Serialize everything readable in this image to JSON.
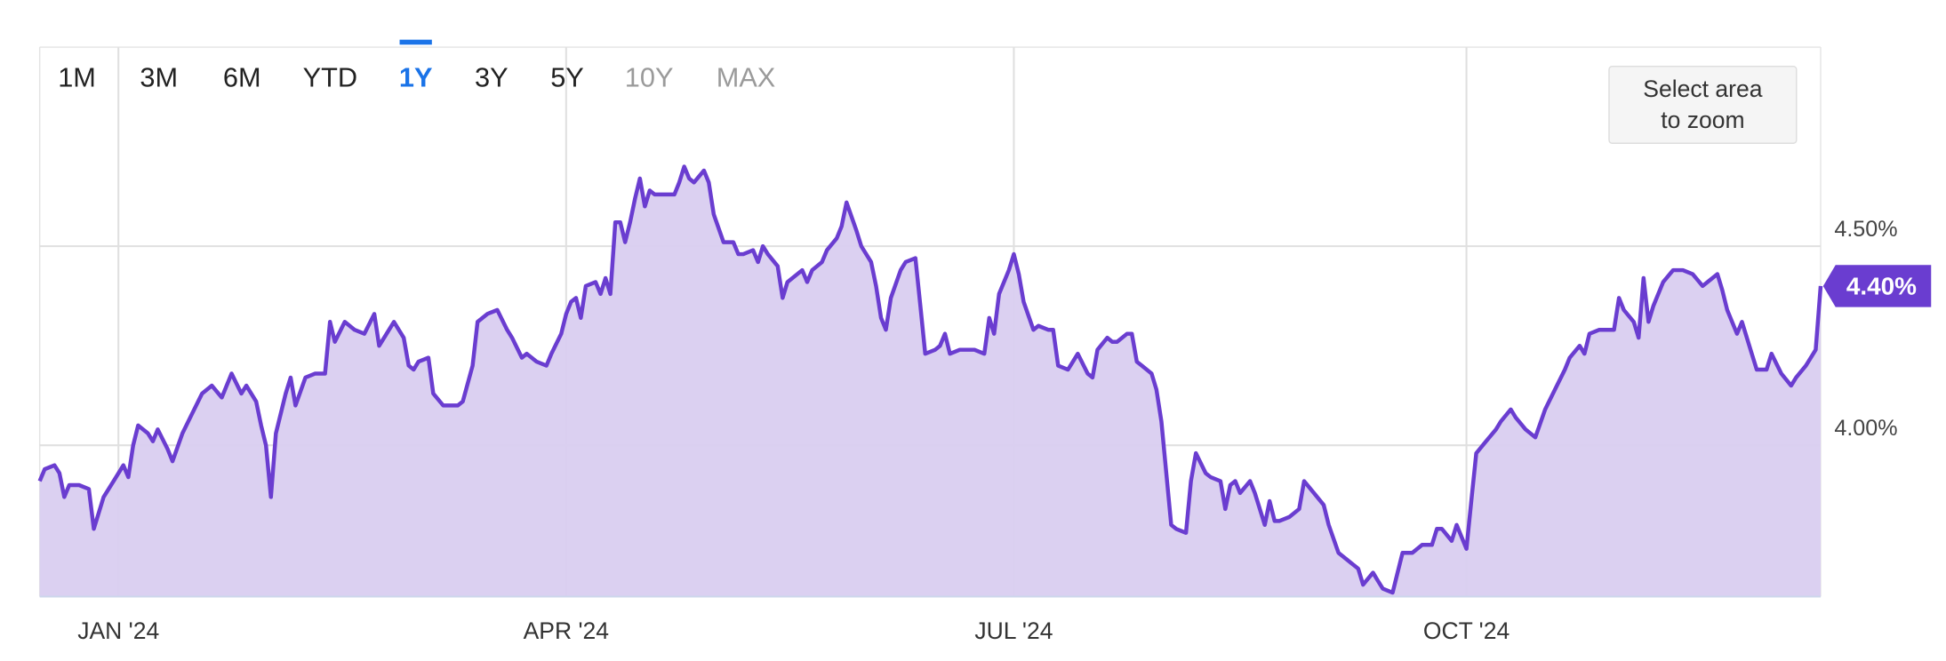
{
  "chart_data": {
    "type": "area",
    "range_buttons": [
      {
        "label": "1M",
        "state": "enabled"
      },
      {
        "label": "3M",
        "state": "enabled"
      },
      {
        "label": "6M",
        "state": "enabled"
      },
      {
        "label": "YTD",
        "state": "enabled"
      },
      {
        "label": "1Y",
        "state": "active"
      },
      {
        "label": "3Y",
        "state": "enabled"
      },
      {
        "label": "5Y",
        "state": "enabled"
      },
      {
        "label": "10Y",
        "state": "disabled"
      },
      {
        "label": "MAX",
        "state": "disabled"
      }
    ],
    "zoom_button": "Select area to zoom",
    "color": "#6a3dd0",
    "fill_color": "#d9cdf0",
    "x": [
      -16,
      -15,
      -13,
      -12,
      -11,
      -10,
      -8,
      -6,
      -5,
      -3,
      -1,
      1,
      2,
      3,
      4,
      6,
      7,
      8,
      10,
      11,
      13,
      15,
      17,
      19,
      21,
      23,
      25,
      26,
      28,
      29,
      30,
      31,
      32,
      34,
      35,
      36,
      38,
      40,
      42,
      43,
      44,
      46,
      48,
      50,
      52,
      53,
      54,
      56,
      58,
      59,
      60,
      61,
      63,
      64,
      66,
      69,
      70,
      72,
      73,
      75,
      77,
      79,
      80,
      82,
      83,
      85,
      87,
      88,
      90,
      91,
      92,
      93,
      94,
      95,
      97,
      98,
      99,
      100,
      101,
      102,
      103,
      104,
      105,
      106,
      107,
      108,
      109,
      111,
      113,
      114,
      115,
      116,
      117,
      119,
      120,
      121,
      123,
      125,
      126,
      127,
      129,
      130,
      131,
      132,
      134,
      135,
      136,
      137,
      139,
      140,
      141,
      143,
      144,
      146,
      147,
      148,
      150,
      151,
      153,
      154,
      155,
      156,
      157,
      159,
      160,
      162,
      163,
      164,
      166,
      167,
      168,
      169,
      171,
      172,
      174,
      176,
      177,
      178,
      179,
      181,
      182,
      183,
      184,
      186,
      187,
      189,
      190,
      191,
      193,
      194,
      195,
      197,
      198,
      199,
      201,
      202,
      203,
      205,
      206,
      207,
      208,
      210,
      211,
      212,
      214,
      215,
      217,
      218,
      219,
      221,
      222,
      224,
      225,
      226,
      227,
      228,
      230,
      231,
      233,
      234,
      235,
      236,
      238,
      240,
      241,
      243,
      245,
      246,
      248,
      250,
      252,
      253,
      255,
      256,
      257,
      259,
      260,
      261,
      263,
      265,
      267,
      268,
      269,
      271,
      272,
      274,
      275,
      276,
      278,
      280,
      281,
      283,
      284,
      286,
      288,
      290,
      292,
      294,
      295,
      297,
      298,
      299,
      301,
      302,
      304,
      305,
      306,
      308,
      309,
      310,
      311,
      312,
      314,
      316,
      318,
      320,
      322,
      323,
      325,
      326,
      327,
      329,
      330,
      332,
      333,
      335,
      336,
      338,
      340,
      341,
      343,
      345,
      346
    ],
    "values": [
      3.91,
      3.94,
      3.95,
      3.93,
      3.87,
      3.9,
      3.9,
      3.89,
      3.79,
      3.87,
      3.91,
      3.95,
      3.92,
      4.0,
      4.05,
      4.03,
      4.01,
      4.04,
      3.99,
      3.96,
      4.03,
      4.08,
      4.13,
      4.15,
      4.12,
      4.18,
      4.13,
      4.15,
      4.11,
      4.05,
      4.0,
      3.87,
      4.03,
      4.13,
      4.17,
      4.1,
      4.17,
      4.18,
      4.18,
      4.31,
      4.26,
      4.31,
      4.29,
      4.28,
      4.33,
      4.25,
      4.27,
      4.31,
      4.27,
      4.2,
      4.19,
      4.21,
      4.22,
      4.13,
      4.1,
      4.1,
      4.11,
      4.2,
      4.31,
      4.33,
      4.34,
      4.29,
      4.27,
      4.22,
      4.23,
      4.21,
      4.2,
      4.23,
      4.28,
      4.33,
      4.36,
      4.37,
      4.32,
      4.4,
      4.41,
      4.38,
      4.42,
      4.38,
      4.56,
      4.56,
      4.51,
      4.56,
      4.62,
      4.67,
      4.6,
      4.64,
      4.63,
      4.63,
      4.63,
      4.66,
      4.7,
      4.67,
      4.66,
      4.69,
      4.66,
      4.58,
      4.51,
      4.51,
      4.48,
      4.48,
      4.49,
      4.46,
      4.5,
      4.48,
      4.45,
      4.37,
      4.41,
      4.42,
      4.44,
      4.41,
      4.44,
      4.46,
      4.49,
      4.52,
      4.55,
      4.61,
      4.54,
      4.5,
      4.46,
      4.4,
      4.32,
      4.29,
      4.37,
      4.44,
      4.46,
      4.47,
      4.35,
      4.23,
      4.24,
      4.25,
      4.28,
      4.23,
      4.24,
      4.24,
      4.24,
      4.23,
      4.32,
      4.28,
      4.38,
      4.44,
      4.48,
      4.43,
      4.36,
      4.29,
      4.3,
      4.29,
      4.29,
      4.2,
      4.19,
      4.21,
      4.23,
      4.18,
      4.17,
      4.24,
      4.27,
      4.26,
      4.26,
      4.28,
      4.28,
      4.21,
      4.2,
      4.18,
      4.14,
      4.06,
      3.8,
      3.79,
      3.78,
      3.91,
      3.98,
      3.93,
      3.92,
      3.91,
      3.84,
      3.9,
      3.91,
      3.88,
      3.91,
      3.88,
      3.8,
      3.86,
      3.81,
      3.81,
      3.82,
      3.84,
      3.91,
      3.88,
      3.85,
      3.8,
      3.73,
      3.71,
      3.69,
      3.65,
      3.68,
      3.66,
      3.64,
      3.63,
      3.68,
      3.73,
      3.73,
      3.75,
      3.75,
      3.79,
      3.79,
      3.76,
      3.8,
      3.74,
      3.86,
      3.98,
      4.01,
      4.04,
      4.06,
      4.09,
      4.07,
      4.04,
      4.02,
      4.09,
      4.14,
      4.19,
      4.22,
      4.25,
      4.23,
      4.28,
      4.29,
      4.29,
      4.29,
      4.37,
      4.34,
      4.31,
      4.27,
      4.42,
      4.31,
      4.35,
      4.41,
      4.44,
      4.44,
      4.43,
      4.4,
      4.41,
      4.43,
      4.39,
      4.34,
      4.28,
      4.31,
      4.23,
      4.19,
      4.19,
      4.23,
      4.18,
      4.15,
      4.17,
      4.2,
      4.24,
      4.4
    ],
    "current_value": {
      "value": 4.4,
      "label": "4.40%"
    },
    "xlim": [
      -16,
      346
    ],
    "xticks": [
      {
        "value": 0,
        "label": "JAN '24"
      },
      {
        "value": 91,
        "label": "APR '24"
      },
      {
        "value": 182,
        "label": "JUL '24"
      },
      {
        "value": 274,
        "label": "OCT '24"
      }
    ],
    "ylim": [
      3.62,
      5.0
    ],
    "yticks": [
      {
        "value": 4,
        "label": "4.00%"
      },
      {
        "value": 4.5,
        "label": "4.50%"
      }
    ],
    "grid": true
  }
}
